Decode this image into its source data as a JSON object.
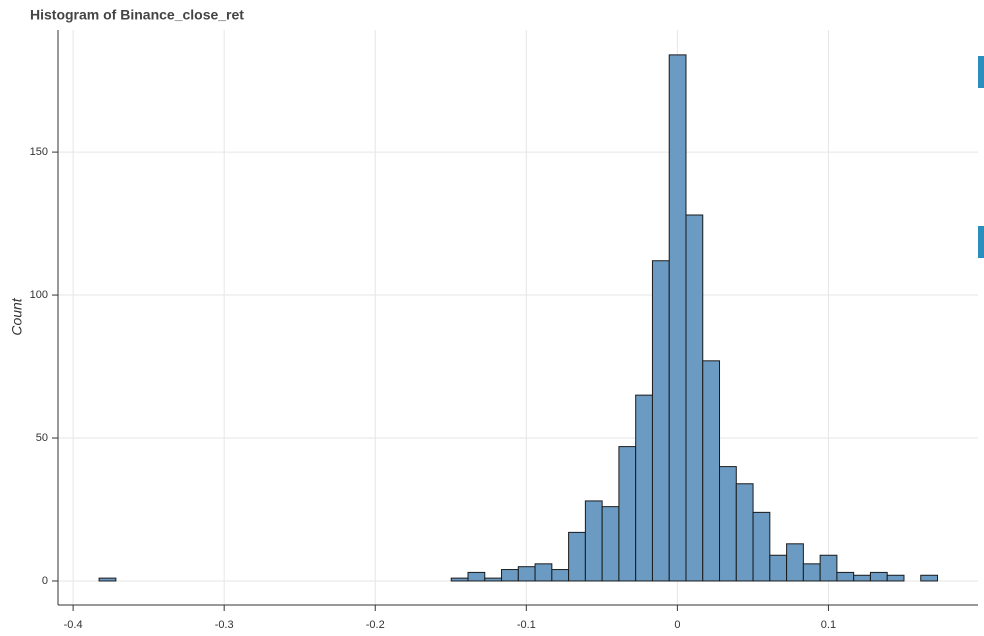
{
  "chart_data": {
    "type": "histogram",
    "title": "Histogram of Binance_close_ret",
    "y_label": "Count",
    "bins": [
      -0.3828,
      -0.3717,
      -0.3606,
      -0.3495,
      -0.3384,
      -0.3273,
      -0.3162,
      -0.3051,
      -0.294,
      -0.2829,
      -0.2718,
      -0.2607,
      -0.2496,
      -0.2385,
      -0.2274,
      -0.2163,
      -0.2052,
      -0.1941,
      -0.183,
      -0.1719,
      -0.1608,
      -0.1497,
      -0.1386,
      -0.1275,
      -0.1164,
      -0.1053,
      -0.0942,
      -0.0831,
      -0.072,
      -0.0609,
      -0.0498,
      -0.0387,
      -0.0276,
      -0.0165,
      -0.0054,
      0.0057,
      0.0168,
      0.0279,
      0.039,
      0.0501,
      0.0612,
      0.0723,
      0.0834,
      0.0945,
      0.1056,
      0.1167,
      0.1278,
      0.1389,
      0.15,
      0.1611,
      0.1722
    ],
    "values": [
      1,
      0,
      0,
      0,
      0,
      0,
      0,
      0,
      0,
      0,
      0,
      0,
      0,
      0,
      0,
      0,
      0,
      0,
      0,
      0,
      0,
      1,
      3,
      1,
      4,
      5,
      6,
      4,
      17,
      28,
      26,
      47,
      65,
      112,
      184,
      128,
      77,
      40,
      34,
      24,
      9,
      13,
      6,
      9,
      3,
      2,
      3,
      2,
      0,
      2
    ],
    "color": "#6b9bc3",
    "edgecolor": "#1a1a1a",
    "xlim": [
      -0.41,
      0.199
    ],
    "ylim": [
      -8.4,
      192.7
    ],
    "xticks": [
      -0.4,
      -0.3,
      -0.2,
      -0.1,
      0,
      0.1
    ],
    "yticks": [
      0,
      50,
      100,
      150
    ],
    "grid": true
  }
}
